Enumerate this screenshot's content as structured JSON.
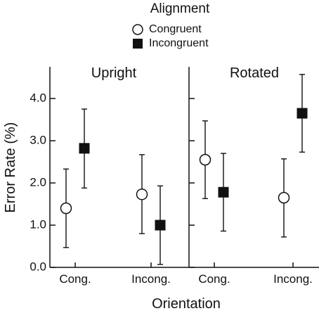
{
  "chart_data": {
    "type": "scatter",
    "legend": {
      "title": "Alignment",
      "placement": "top-center",
      "entries": [
        {
          "label": "Congruent",
          "marker": "open-circle"
        },
        {
          "label": "Incongruent",
          "marker": "filled-square"
        }
      ]
    },
    "ylabel": "Error Rate (%)",
    "xlabel": "Orientation",
    "ylim": [
      0,
      4.75
    ],
    "yticks": [
      "0.0",
      "1.0",
      "2.0",
      "3.0",
      "4.0"
    ],
    "ytick_values": [
      0,
      1,
      2,
      3,
      4
    ],
    "categories": [
      "Cong.",
      "Incong."
    ],
    "panels": [
      {
        "title": "Upright",
        "series": [
          {
            "name": "Congruent",
            "values": [
              1.4,
              1.73
            ],
            "err_low": [
              0.47,
              0.8
            ],
            "err_high": [
              2.33,
              2.67
            ]
          },
          {
            "name": "Incongruent",
            "values": [
              2.82,
              1.0
            ],
            "err_low": [
              1.88,
              0.07
            ],
            "err_high": [
              3.75,
              1.93
            ]
          }
        ]
      },
      {
        "title": "Rotated",
        "series": [
          {
            "name": "Congruent",
            "values": [
              2.55,
              1.65
            ],
            "err_low": [
              1.63,
              0.72
            ],
            "err_high": [
              3.47,
              2.57
            ]
          },
          {
            "name": "Incongruent",
            "values": [
              1.78,
              3.65
            ],
            "err_low": [
              0.86,
              2.73
            ],
            "err_high": [
              2.7,
              4.57
            ]
          }
        ]
      }
    ],
    "grid": false
  }
}
